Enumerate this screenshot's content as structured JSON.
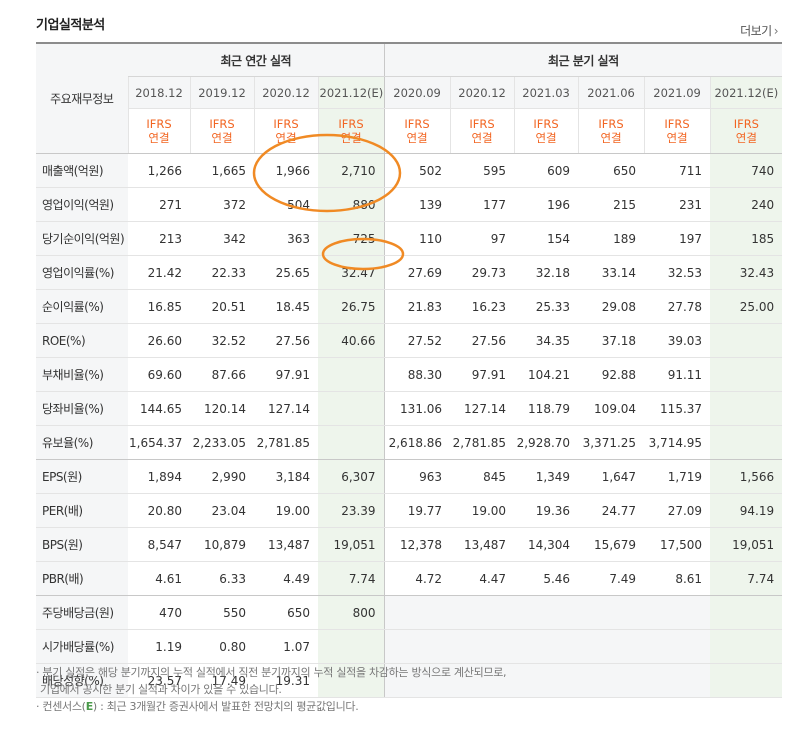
{
  "section_title": "기업실적분석",
  "more_label": "더보기",
  "header": {
    "row_label": "주요재무정보",
    "annual_group": "최근 연간 실적",
    "quarter_group": "최근 분기 실적",
    "annual_periods": [
      "2018.12",
      "2019.12",
      "2020.12",
      "2021.12(E)"
    ],
    "quarter_periods": [
      "2020.09",
      "2020.12",
      "2021.03",
      "2021.06",
      "2021.09",
      "2021.12(E)"
    ],
    "ifrs_line1": "IFRS",
    "ifrs_line2": "연결"
  },
  "rows": [
    {
      "label": "매출액(억원)",
      "values": [
        "1,266",
        "1,665",
        "1,966",
        "2,710",
        "502",
        "595",
        "609",
        "650",
        "711",
        "740"
      ]
    },
    {
      "label": "영업이익(억원)",
      "values": [
        "271",
        "372",
        "504",
        "880",
        "139",
        "177",
        "196",
        "215",
        "231",
        "240"
      ]
    },
    {
      "label": "당기순이익(억원)",
      "values": [
        "213",
        "342",
        "363",
        "725",
        "110",
        "97",
        "154",
        "189",
        "197",
        "185"
      ]
    },
    {
      "label": "영업이익률(%)",
      "values": [
        "21.42",
        "22.33",
        "25.65",
        "32.47",
        "27.69",
        "29.73",
        "32.18",
        "33.14",
        "32.53",
        "32.43"
      ]
    },
    {
      "label": "순이익률(%)",
      "values": [
        "16.85",
        "20.51",
        "18.45",
        "26.75",
        "21.83",
        "16.23",
        "25.33",
        "29.08",
        "27.78",
        "25.00"
      ]
    },
    {
      "label": "ROE(%)",
      "values": [
        "26.60",
        "32.52",
        "27.56",
        "40.66",
        "27.52",
        "27.56",
        "34.35",
        "37.18",
        "39.03",
        ""
      ]
    },
    {
      "label": "부채비율(%)",
      "values": [
        "69.60",
        "87.66",
        "97.91",
        "",
        "88.30",
        "97.91",
        "104.21",
        "92.88",
        "91.11",
        ""
      ]
    },
    {
      "label": "당좌비율(%)",
      "values": [
        "144.65",
        "120.14",
        "127.14",
        "",
        "131.06",
        "127.14",
        "118.79",
        "109.04",
        "115.37",
        ""
      ]
    },
    {
      "label": "유보율(%)",
      "values": [
        "1,654.37",
        "2,233.05",
        "2,781.85",
        "",
        "2,618.86",
        "2,781.85",
        "2,928.70",
        "3,371.25",
        "3,714.95",
        ""
      ]
    },
    {
      "label": "EPS(원)",
      "values": [
        "1,894",
        "2,990",
        "3,184",
        "6,307",
        "963",
        "845",
        "1,349",
        "1,647",
        "1,719",
        "1,566"
      ]
    },
    {
      "label": "PER(배)",
      "values": [
        "20.80",
        "23.04",
        "19.00",
        "23.39",
        "19.77",
        "19.00",
        "19.36",
        "24.77",
        "27.09",
        "94.19"
      ]
    },
    {
      "label": "BPS(원)",
      "values": [
        "8,547",
        "10,879",
        "13,487",
        "19,051",
        "12,378",
        "13,487",
        "14,304",
        "15,679",
        "17,500",
        "19,051"
      ]
    },
    {
      "label": "PBR(배)",
      "values": [
        "4.61",
        "6.33",
        "4.49",
        "7.74",
        "4.72",
        "4.47",
        "5.46",
        "7.49",
        "8.61",
        "7.74"
      ]
    },
    {
      "label": "주당배당금(원)",
      "values": [
        "470",
        "550",
        "650",
        "800",
        "",
        "",
        "",
        "",
        "",
        ""
      ]
    },
    {
      "label": "시가배당률(%)",
      "values": [
        "1.19",
        "0.80",
        "1.07",
        "",
        "",
        "",
        "",
        "",
        "",
        ""
      ]
    },
    {
      "label": "배당성향(%)",
      "values": [
        "23.57",
        "17.49",
        "19.31",
        "",
        "",
        "",
        "",
        "",
        "",
        ""
      ]
    }
  ],
  "notes": {
    "line1": "분기 실적은 해당 분기까지의 누적 실적에서 직전 분기까지의 누적 실적을 차감하는 방식으로 계산되므로,",
    "line2": "기업에서 공시한 분기 실적과 차이가 있을 수 있습니다.",
    "line3_prefix": "컨센서스(",
    "line3_e": "E",
    "line3_suffix": ") : 최근 3개월간 증권사에서 발표한 전망치의 평균값입니다."
  },
  "colors": {
    "ifrs": "#f26522",
    "estimate_bg": "#eef5ec",
    "annotation": "#f08a24",
    "estimate_marker": "#4a9a4a"
  }
}
